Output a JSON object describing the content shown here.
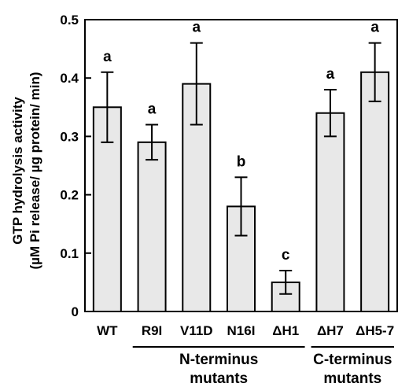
{
  "chart_data": {
    "type": "bar",
    "ylabel_line1": "GTP hydrolysis activity",
    "ylabel_line2": "(µM Pi release/ µg protein/ min)",
    "ylim": [
      0,
      0.5
    ],
    "yticks": [
      "0",
      "0.1",
      "0.2",
      "0.3",
      "0.4",
      "0.5"
    ],
    "yticks_values": [
      0,
      0.1,
      0.2,
      0.3,
      0.4,
      0.5
    ],
    "categories": [
      "WT",
      "R9I",
      "V11D",
      "N16I",
      "ΔH1",
      "ΔH7",
      "ΔH5-7"
    ],
    "values": [
      0.35,
      0.29,
      0.39,
      0.18,
      0.05,
      0.34,
      0.41
    ],
    "errors": [
      0.06,
      0.03,
      0.07,
      0.05,
      0.02,
      0.04,
      0.05
    ],
    "significance": [
      "a",
      "a",
      "a",
      "b",
      "c",
      "a",
      "a"
    ],
    "groups": [
      {
        "line1": "N-terminus",
        "line2": "mutants",
        "from": 1,
        "to": 4
      },
      {
        "line1": "C-terminus",
        "line2": "mutants",
        "from": 5,
        "to": 6
      }
    ],
    "bar_color": "#e8e8e8",
    "grid": false
  }
}
